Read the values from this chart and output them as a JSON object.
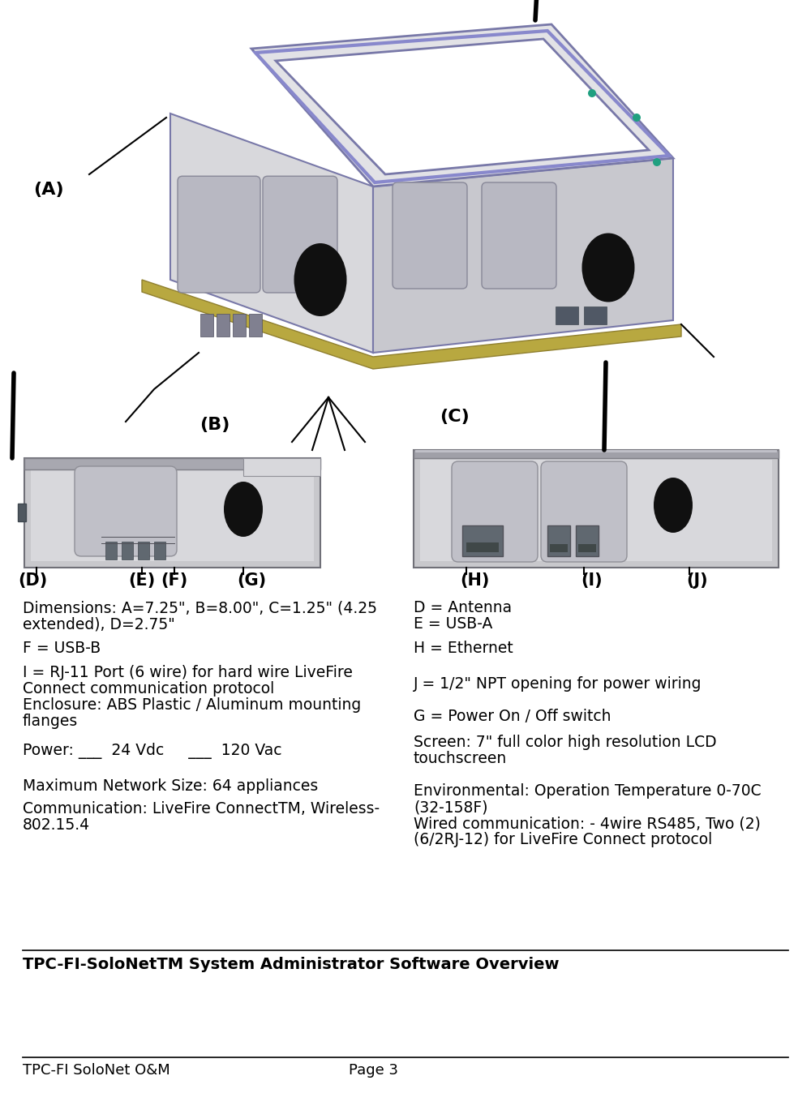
{
  "page_width": 10.0,
  "page_height": 13.64,
  "dpi": 100,
  "bg_color": "#ffffff",
  "title_text": "TPC-FI-SoloNetTM System Administrator Software Overview",
  "footer_left": "TPC-FI SoloNet O&M",
  "footer_right": "Page 3",
  "label_A": "(A)",
  "label_B": "(B)",
  "label_C": "(C)",
  "label_D": "(D)",
  "label_E": "(E)",
  "label_F": "(F)",
  "label_G": "(G)",
  "label_H": "(H)",
  "label_I": "(I)",
  "label_J": "(J)",
  "face_color_main": "#d8d8dc",
  "face_color_top": "#e2e2e6",
  "face_color_right": "#c8c8ce",
  "face_edge": "#7878a8",
  "screen_white": "#ffffff",
  "base_color": "#b8a840",
  "base_edge": "#908030",
  "circle_black": "#101010",
  "arch_fill": "#b8b8c2",
  "arch_edge": "#888898",
  "panel_main": "#c8c8cc",
  "panel_light": "#d8d8dc",
  "panel_dark": "#a0a0a8",
  "port_dark": "#606068"
}
